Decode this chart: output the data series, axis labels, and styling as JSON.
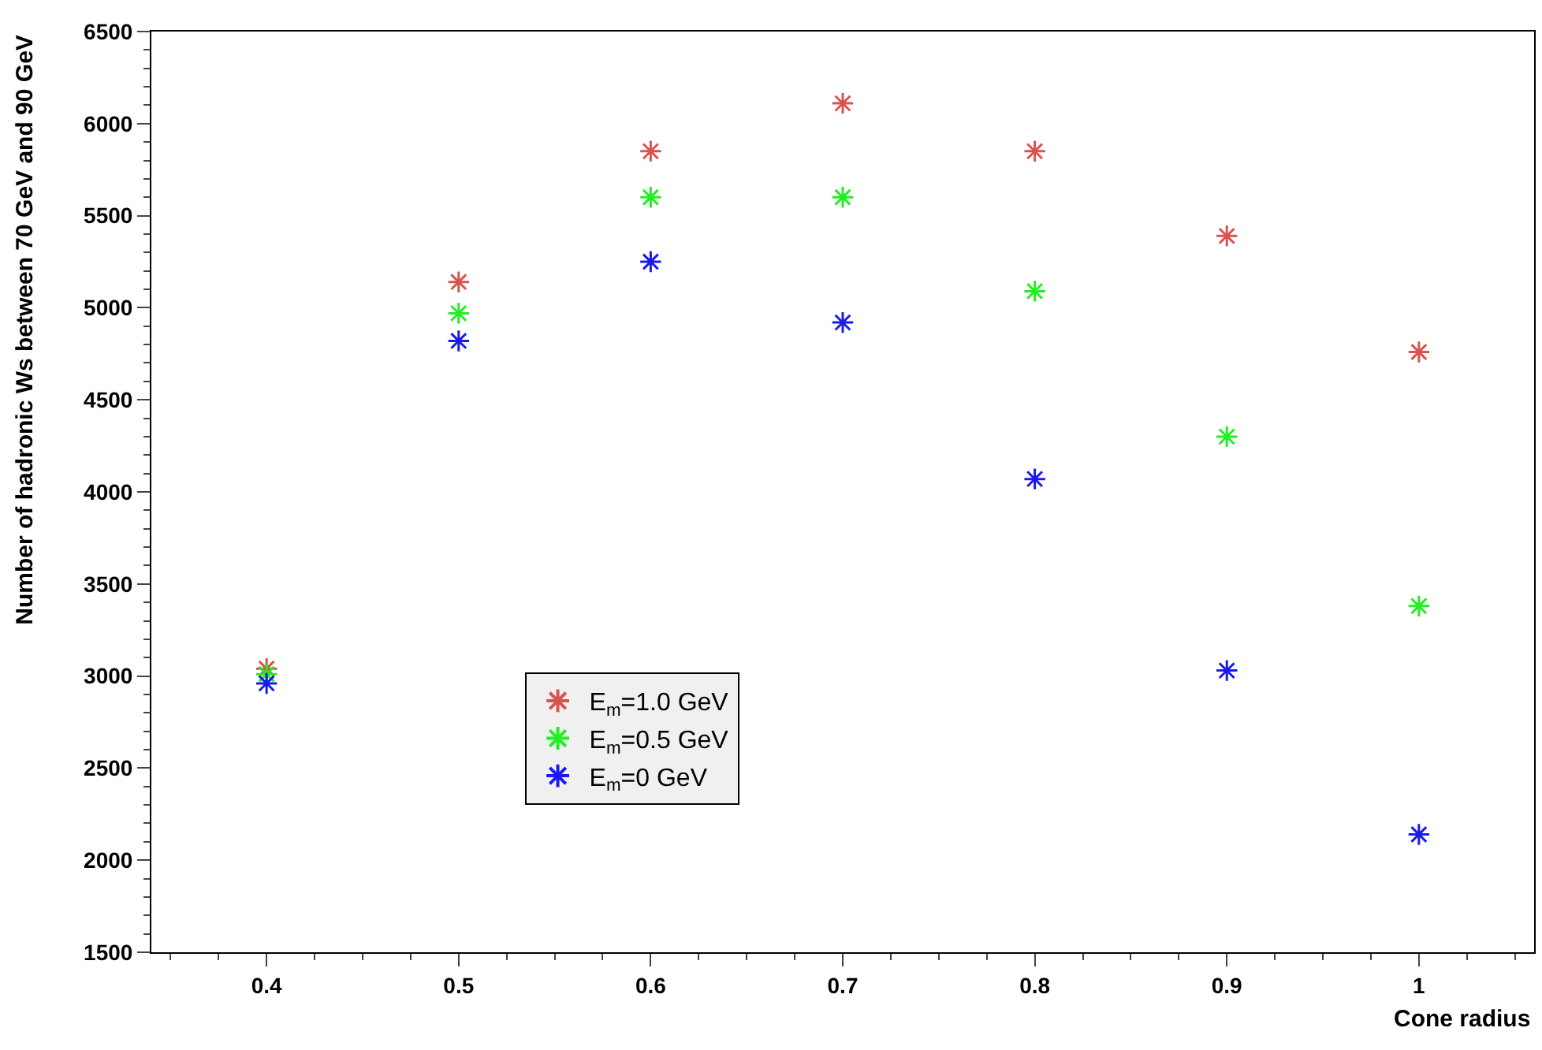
{
  "chart_data": {
    "type": "scatter",
    "xlabel": "Cone radius",
    "ylabel": "Number of hadronic Ws between 70 GeV and 90 GeV",
    "x": [
      0.4,
      0.5,
      0.6,
      0.7,
      0.8,
      0.9,
      1.0
    ],
    "series": [
      {
        "name": "E$_{m}$=1.0 GeV",
        "color": "#d9534f",
        "values": [
          3040,
          5140,
          5850,
          6110,
          5850,
          5390,
          4760
        ]
      },
      {
        "name": "E$_{m}$=0.5 GeV",
        "color": "#22ee22",
        "values": [
          3010,
          4970,
          5600,
          5600,
          5090,
          4300,
          3380
        ]
      },
      {
        "name": "E$_{m}$=0 GeV",
        "color": "#1a1aee",
        "values": [
          2960,
          4820,
          5250,
          4920,
          4070,
          3030,
          2140
        ]
      }
    ],
    "xlim": [
      0.34,
      1.06
    ],
    "xticks": [
      0.4,
      0.5,
      0.6,
      0.7,
      0.8,
      0.9,
      {
        "value": 1.0,
        "label": "1"
      }
    ],
    "ylim": [
      1500,
      6500
    ],
    "yticks": [
      1500,
      2000,
      2500,
      3000,
      3500,
      4000,
      4500,
      5000,
      5500,
      6000,
      6500
    ],
    "marker": "cross",
    "legend": "bottom"
  }
}
